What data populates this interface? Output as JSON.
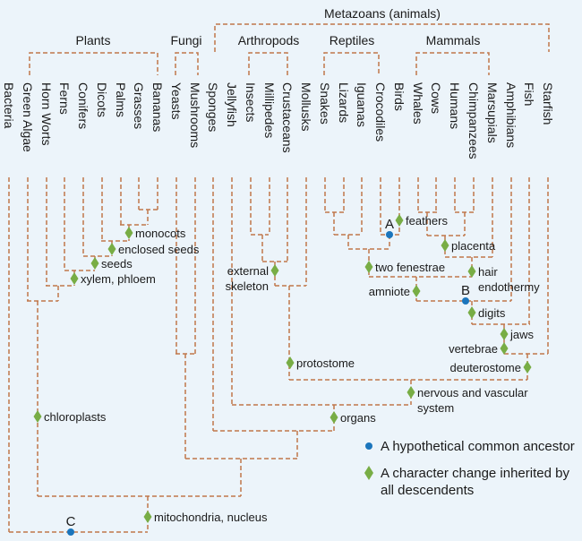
{
  "colors": {
    "line": "#c0764a",
    "diamond": "#78ad45",
    "ancestor": "#1b75bc",
    "background": "#ecf4fa"
  },
  "groups": {
    "metazoans": "Metazoans (animals)",
    "plants": "Plants",
    "fungi": "Fungi",
    "arthropods": "Arthropods",
    "reptiles": "Reptiles",
    "mammals": "Mammals"
  },
  "leaves": [
    "Bacteria",
    "Green Algae",
    "Horn Worts",
    "Ferns",
    "Conifers",
    "Dicots",
    "Palms",
    "Grasses",
    "Bananas",
    "Yeasts",
    "Mushrooms",
    "Sponges",
    "Jellyfish",
    "Insects",
    "Millipedes",
    "Crustaceans",
    "Mollusks",
    "Snakes",
    "Lizards",
    "Iguanas",
    "Crocodiles",
    "Birds",
    "Whales",
    "Cows",
    "Humans",
    "Chimpanzees",
    "Marsupials",
    "Amphibians",
    "Fish",
    "Starfish"
  ],
  "characters": [
    {
      "lines": [
        "monocots"
      ]
    },
    {
      "lines": [
        "enclosed seeds"
      ]
    },
    {
      "lines": [
        "seeds"
      ]
    },
    {
      "lines": [
        "xylem, phloem"
      ]
    },
    {
      "lines": [
        "chloroplasts"
      ]
    },
    {
      "lines": [
        "mitochondria, nucleus"
      ]
    },
    {
      "lines": [
        "external",
        "skeleton"
      ]
    },
    {
      "lines": [
        "protostome"
      ]
    },
    {
      "lines": [
        "organs"
      ]
    },
    {
      "lines": [
        "nervous and vascular",
        "system"
      ]
    },
    {
      "lines": [
        "feathers"
      ]
    },
    {
      "lines": [
        "two fenestrae"
      ]
    },
    {
      "lines": [
        "amniote"
      ]
    },
    {
      "lines": [
        "placenta"
      ]
    },
    {
      "lines": [
        "hair",
        "endothermy"
      ]
    },
    {
      "lines": [
        "digits"
      ]
    },
    {
      "lines": [
        "jaws"
      ]
    },
    {
      "lines": [
        "vertebrae"
      ]
    },
    {
      "lines": [
        "deuterostome"
      ]
    }
  ],
  "ancestors": [
    "A",
    "B",
    "C"
  ],
  "legend": {
    "ancestor": "A hypothetical common ancestor",
    "character_line1": "A character change inherited by",
    "character_line2": "all descendents"
  }
}
